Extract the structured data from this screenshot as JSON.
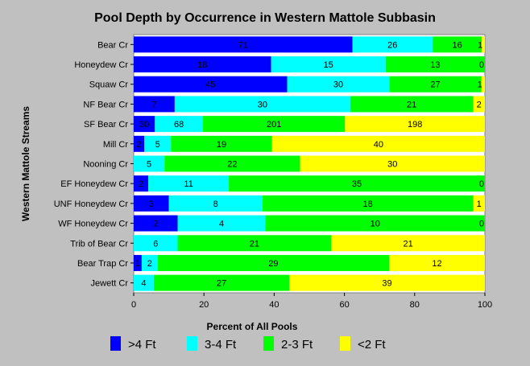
{
  "chart_data": {
    "type": "bar",
    "orientation": "horizontal",
    "stacked": "percent",
    "title": "Pool Depth by Occurrence in Western Mattole Subbasin",
    "xlabel": "Percent of All Pools",
    "ylabel": "Western Mattole Streams",
    "xlim": [
      0,
      100
    ],
    "xticks": [
      0,
      20,
      40,
      60,
      80,
      100
    ],
    "grid": false,
    "legend_position": "bottom",
    "categories": [
      "Bear Cr",
      "Honeydew Cr",
      "Squaw Cr",
      "NF Bear Cr",
      "SF Bear Cr",
      "Mill Cr",
      "Nooning Cr",
      "EF Honeydew Cr",
      "UNF Honeydew Cr",
      "WF Honeydew Cr",
      "Trib of Bear Cr",
      "Bear Trap Cr",
      "Jewett Cr"
    ],
    "series": [
      {
        "name": ">4 Ft",
        "color": "#0000ff",
        "values": [
          71,
          18,
          45,
          7,
          30,
          2,
          0,
          2,
          3,
          2,
          0,
          1,
          0
        ]
      },
      {
        "name": "3-4 Ft",
        "color": "#00ffff",
        "values": [
          26,
          15,
          30,
          30,
          68,
          5,
          5,
          11,
          8,
          4,
          6,
          2,
          4
        ]
      },
      {
        "name": "2-3 Ft",
        "color": "#00ff00",
        "values": [
          16,
          13,
          27,
          21,
          201,
          19,
          22,
          35,
          18,
          10,
          21,
          29,
          27
        ]
      },
      {
        "name": "<2 Ft",
        "color": "#ffff00",
        "values": [
          1,
          0,
          1,
          2,
          198,
          40,
          30,
          0,
          1,
          0,
          21,
          12,
          39
        ]
      }
    ]
  }
}
